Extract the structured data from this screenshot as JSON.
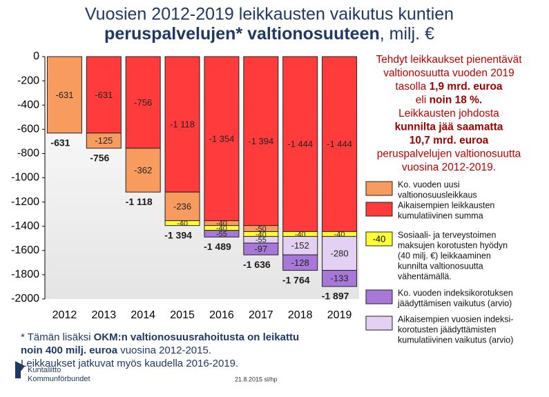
{
  "chart_data": {
    "type": "stacked-bar",
    "title": {
      "line1": "Vuosien 2012-2019 leikkausten vaikutus kuntien",
      "line2_bold": "peruspalvelujen* valtionosuuteen",
      "line2_rest": ", milj. €"
    },
    "categories": [
      "2012",
      "2013",
      "2014",
      "2015",
      "2016",
      "2017",
      "2018",
      "2019"
    ],
    "ylim": [
      -2000,
      0
    ],
    "yticks": [
      0,
      -200,
      -400,
      -600,
      -800,
      -1000,
      -1200,
      -1400,
      -1600,
      -1800,
      -2000
    ],
    "grid": false,
    "series": [
      {
        "name": [
          "Ko. vuoden uusi",
          "valtionosuusleikkaus"
        ],
        "color": "#f79b5f",
        "values": [
          -631,
          -125,
          -362,
          -236,
          -40,
          -50,
          null,
          null
        ],
        "value_labels": [
          "-631",
          "-125",
          "-362",
          "-236",
          "-40",
          "-50",
          null,
          null
        ]
      },
      {
        "name": [
          "Aikaisempien leikkausten",
          "kumulatiivinen summa"
        ],
        "color": "#ff3b3b",
        "values": [
          null,
          -631,
          -756,
          -1118,
          -1354,
          -1394,
          -1444,
          -1444
        ],
        "value_labels": [
          null,
          "-631",
          "-756",
          "-1 118",
          "-1 354",
          "-1 394",
          "-1 444",
          "-1 444"
        ]
      },
      {
        "name": [
          "Sosiaali- ja terveystoimen",
          "maksujen korotusten hyödyn",
          "(40 milj. €) leikkaaminen",
          "kunnilta valtionosuutta",
          "vähentämällä."
        ],
        "color": "#ffff33",
        "sample_label": "-40",
        "values": [
          null,
          null,
          null,
          -40,
          -40,
          -40,
          -40,
          -40
        ],
        "value_labels": [
          null,
          null,
          null,
          "-40",
          "-40",
          "-40",
          "-40",
          "-40"
        ]
      },
      {
        "name": [
          "Ko. vuoden indeksikorotuksen",
          "jäädyttämisen vaikutus (arvio)"
        ],
        "color": "#a878d8",
        "values": [
          null,
          null,
          null,
          null,
          -55,
          -97,
          -128,
          -133
        ],
        "value_labels": [
          null,
          null,
          null,
          null,
          "-55",
          "-97",
          "-128",
          "-133"
        ]
      },
      {
        "name": [
          "Aikaisempien vuosien indeksi-",
          "korotusten jäädyttämisten",
          "kumulatiivinen vaikutus (arvio)"
        ],
        "color": "#e3d0f2",
        "values": [
          null,
          null,
          null,
          null,
          null,
          -55,
          -152,
          -280
        ],
        "value_labels": [
          null,
          null,
          null,
          null,
          null,
          "-55",
          "-152",
          "-280"
        ]
      }
    ],
    "totals": {
      "values": [
        -631,
        -756,
        -1118,
        -1394,
        -1489,
        -1636,
        -1764,
        -1897
      ],
      "value_labels": [
        "-631",
        "-756",
        "-1 118",
        "-1 394",
        "-1 489",
        "-1 636",
        "-1 764",
        "-1 897"
      ]
    },
    "annotation": [
      [
        {
          "text": "Tehdyt leikkaukset pienentävät",
          "bold": false
        }
      ],
      [
        {
          "text": "valtionosuutta vuoden 2019",
          "bold": false
        }
      ],
      [
        {
          "text": "tasolla ",
          "bold": false
        },
        {
          "text": "1,9 mrd. euroa",
          "bold": true
        }
      ],
      [
        {
          "text": "eli ",
          "bold": false
        },
        {
          "text": "noin 18 %.",
          "bold": true
        }
      ],
      [
        {
          "text": "Leikkausten johdosta",
          "bold": false
        }
      ],
      [
        {
          "text": "kunnilta jää saamatta",
          "bold": true
        }
      ],
      [
        {
          "text": "10,7 mrd. euroa",
          "bold": true
        }
      ],
      [
        {
          "text": "peruspalvelujen valtionosuutta",
          "bold": false
        }
      ],
      [
        {
          "text": "vuosina 2012-2019.",
          "bold": false
        }
      ]
    ],
    "footnote": [
      [
        {
          "text": " * Tämän lisäksi ",
          "bold": false
        },
        {
          "text": "OKM:n valtionosuusrahoitusta on leikattu",
          "bold": true
        }
      ],
      [
        {
          "text": "noin 400 milj. euroa",
          "bold": true
        },
        {
          "text": " vuosina 2012-2015.",
          "bold": false
        }
      ],
      [
        {
          "text": "Leikkaukset jatkuvat myös kaudella 2016-2019.",
          "bold": false
        }
      ]
    ],
    "footer": {
      "logo_line1": "Kuntaliitto",
      "logo_line2": "Kommunförbundet",
      "date": "21.8.2015 sl/hp"
    }
  }
}
